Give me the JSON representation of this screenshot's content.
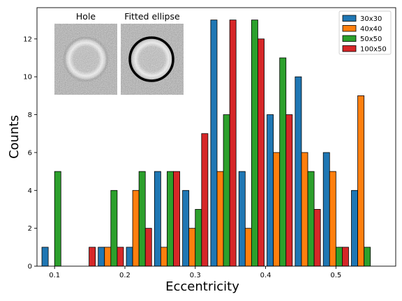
{
  "chart_data": {
    "type": "bar",
    "xlabel": "Eccentricity",
    "ylabel": "Counts",
    "xlim": [
      0.075,
      0.585
    ],
    "ylim": [
      0,
      13.65
    ],
    "bin_starts": [
      0.1,
      0.14,
      0.18,
      0.22,
      0.26,
      0.3,
      0.34,
      0.38,
      0.42,
      0.46,
      0.5,
      0.54
    ],
    "bin_width": 0.04,
    "x_ticks": [
      0.1,
      0.2,
      0.3,
      0.4,
      0.5
    ],
    "x_tick_labels": [
      "0.1",
      "0.2",
      "0.3",
      "0.4",
      "0.5"
    ],
    "y_ticks": [
      0,
      2,
      4,
      6,
      8,
      10,
      12
    ],
    "y_tick_labels": [
      "0",
      "2",
      "4",
      "6",
      "8",
      "10",
      "12"
    ],
    "series": [
      {
        "name": "30x30",
        "color": "#1f77b4",
        "values": [
          1,
          0,
          1,
          1,
          5,
          4,
          13,
          5,
          8,
          10,
          6,
          4
        ]
      },
      {
        "name": "40x40",
        "color": "#ff7f0e",
        "values": [
          0,
          0,
          1,
          4,
          1,
          2,
          5,
          2,
          6,
          6,
          5,
          9
        ]
      },
      {
        "name": "50x50",
        "color": "#2ca02c",
        "values": [
          5,
          0,
          4,
          5,
          5,
          3,
          8,
          13,
          11,
          5,
          1,
          1
        ]
      },
      {
        "name": "100x50",
        "color": "#d62728",
        "values": [
          0,
          1,
          1,
          2,
          5,
          7,
          13,
          12,
          8,
          3,
          1,
          0
        ]
      }
    ],
    "legend_position": "top-right",
    "grid": false
  },
  "inset": {
    "hole_label": "Hole",
    "fitted_label": "Fitted ellipse"
  }
}
